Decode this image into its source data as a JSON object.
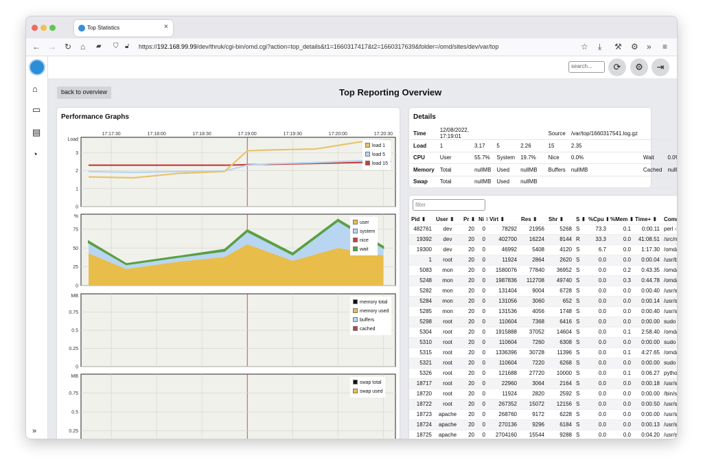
{
  "browser": {
    "tab_title": "Top Statistics",
    "url_prefix": "https://",
    "url_host": "192.168.99.99",
    "url_path": "/dev/thruk/cgi-bin/omd.cgi?action=top_details&t1=1660317417&t2=1660317639&folder=/omd/sites/dev/var/top",
    "colors": {
      "close": "#ed6a5e",
      "minimize": "#f5bf4f",
      "maximize": "#61c554"
    }
  },
  "app": {
    "search_placeholder": "search...",
    "back_label": "back to overview",
    "page_title": "Top Reporting Overview",
    "sidebar_icons": [
      "home-icon",
      "monitor-icon",
      "book-icon",
      "gauge-icon",
      "expand-icon"
    ]
  },
  "graphs": {
    "title": "Performance Graphs",
    "time_ticks": [
      "17:17:30",
      "17:18:00",
      "17:18:30",
      "17:19:00",
      "17:19:30",
      "17:20:00",
      "17:20:30"
    ],
    "load": {
      "ylabel": "Load",
      "yticks": [
        "0",
        "1",
        "2",
        "3"
      ],
      "legend": [
        {
          "name": "load 1",
          "color": "#e8c36a"
        },
        {
          "name": "load 5",
          "color": "#b8d6f2"
        },
        {
          "name": "load 15",
          "color": "#c2413e"
        }
      ]
    },
    "cpu": {
      "ylabel": "%",
      "yticks": [
        "0",
        "25",
        "50",
        "75"
      ],
      "legend": [
        {
          "name": "user",
          "color": "#e8bd4a"
        },
        {
          "name": "system",
          "color": "#b8d6f2"
        },
        {
          "name": "nice",
          "color": "#c2413e"
        },
        {
          "name": "wait",
          "color": "#5aa042"
        }
      ]
    },
    "memory": {
      "ylabel": "MB",
      "yticks": [
        "0",
        "0.25",
        "0.5",
        "0.75"
      ],
      "legend": [
        {
          "name": "memory total",
          "color": "#111111"
        },
        {
          "name": "memory used",
          "color": "#e8bd4a"
        },
        {
          "name": "buffers",
          "color": "#b8d6f2"
        },
        {
          "name": "cached",
          "color": "#c2413e"
        }
      ]
    },
    "swap": {
      "ylabel": "MB",
      "yticks": [
        "0.25",
        "0.5",
        "0.75"
      ],
      "legend": [
        {
          "name": "swap total",
          "color": "#111111"
        },
        {
          "name": "swap used",
          "color": "#e8bd4a"
        }
      ]
    }
  },
  "chart_data": [
    {
      "type": "line",
      "title": "",
      "ylabel": "Load",
      "x": [
        "17:17:15",
        "17:17:45",
        "17:18:15",
        "17:18:45",
        "17:19:00",
        "17:19:15",
        "17:19:45",
        "17:20:15",
        "17:20:35"
      ],
      "series": [
        {
          "name": "load 1",
          "values": [
            1.65,
            1.6,
            1.85,
            1.95,
            3.1,
            3.15,
            3.2,
            3.6,
            3.7
          ]
        },
        {
          "name": "load 5",
          "values": [
            1.95,
            1.9,
            1.95,
            1.98,
            2.3,
            2.38,
            2.45,
            2.55,
            2.6
          ]
        },
        {
          "name": "load 15",
          "values": [
            2.3,
            2.3,
            2.3,
            2.3,
            2.33,
            2.35,
            2.4,
            2.45,
            2.5
          ]
        }
      ],
      "ylim": [
        0,
        3.85
      ]
    },
    {
      "type": "area",
      "title": "",
      "ylabel": "%",
      "x": [
        "17:17:15",
        "17:17:40",
        "17:18:15",
        "17:18:45",
        "17:19:00",
        "17:19:30",
        "17:20:00",
        "17:20:30"
      ],
      "series": [
        {
          "name": "user",
          "values": [
            43,
            22,
            32,
            38,
            55,
            33,
            50,
            40
          ]
        },
        {
          "name": "system",
          "values": [
            14,
            6,
            6,
            8,
            17,
            8,
            36,
            10
          ]
        },
        {
          "name": "nice",
          "values": [
            0,
            0,
            0,
            0,
            0,
            0,
            0,
            0
          ]
        },
        {
          "name": "wait",
          "values": [
            2,
            1,
            1,
            2,
            2,
            2,
            2,
            2
          ]
        }
      ],
      "ylim": [
        0,
        95
      ]
    },
    {
      "type": "line",
      "title": "",
      "ylabel": "MB",
      "series": [
        {
          "name": "memory total",
          "values": []
        },
        {
          "name": "memory used",
          "values": []
        },
        {
          "name": "buffers",
          "values": []
        },
        {
          "name": "cached",
          "values": []
        }
      ],
      "ylim": [
        0,
        1
      ]
    },
    {
      "type": "line",
      "title": "",
      "ylabel": "MB",
      "series": [
        {
          "name": "swap total",
          "values": []
        },
        {
          "name": "swap used",
          "values": []
        }
      ],
      "ylim": [
        0,
        1
      ]
    }
  ],
  "details": {
    "title": "Details",
    "rows": [
      [
        "Time",
        "12/08/2022, 17:19:01",
        "",
        "",
        "",
        "",
        "Source",
        "/var/top/1660317541.log.gz",
        "",
        ""
      ],
      [
        "Load",
        "1",
        "3.17",
        "5",
        "2.26",
        "",
        "15",
        "2.35",
        "",
        ""
      ],
      [
        "CPU",
        "User",
        "55.7%",
        "System",
        "19.7%",
        "",
        "Nice",
        "0.0%",
        "Wait",
        "0.0%"
      ],
      [
        "Memory",
        "Total",
        "nullMB",
        "Used",
        "nullMB",
        "",
        "Buffers",
        "nullMB",
        "Cached",
        "nullMB"
      ],
      [
        "Swap",
        "Total",
        "nullMB",
        "Used",
        "nullMB",
        "",
        "",
        "",
        "",
        ""
      ]
    ]
  },
  "processes": {
    "filter_placeholder": "filter",
    "columns": [
      "Pid",
      "User",
      "Pr",
      "Ni",
      "Virt",
      "Res",
      "Shr",
      "S",
      "%Cpu",
      "%Mem",
      "Time+",
      "Comma"
    ],
    "rows": [
      [
        "482761",
        "dev",
        "20",
        "0",
        "78292",
        "21956",
        "5268",
        "S",
        "73.3",
        "0.1",
        "0:00.11",
        "perl -x"
      ],
      [
        "19392",
        "dev",
        "20",
        "0",
        "402700",
        "16224",
        "8144",
        "R",
        "33.3",
        "0.0",
        "41:08.51",
        "/src/na"
      ],
      [
        "19300",
        "dev",
        "20",
        "0",
        "46992",
        "5408",
        "4120",
        "S",
        "6.7",
        "0.0",
        "1:17.30",
        "/omd/s"
      ],
      [
        "1",
        "root",
        "20",
        "0",
        "11924",
        "2864",
        "2620",
        "S",
        "0.0",
        "0.0",
        "0:00.04",
        "/usr/bi"
      ],
      [
        "5083",
        "mon",
        "20",
        "0",
        "1580076",
        "77840",
        "36952",
        "S",
        "0.0",
        "0.2",
        "0:43.35",
        "/omd/s"
      ],
      [
        "5248",
        "mon",
        "20",
        "0",
        "1987836",
        "112708",
        "49740",
        "S",
        "0.0",
        "0.3",
        "0:44.78",
        "/omd/s"
      ],
      [
        "5282",
        "mon",
        "20",
        "0",
        "131404",
        "9004",
        "6728",
        "S",
        "0.0",
        "0.0",
        "0:00.40",
        "/usr/sb"
      ],
      [
        "5284",
        "mon",
        "20",
        "0",
        "131056",
        "3060",
        "652",
        "S",
        "0.0",
        "0.0",
        "0:00.14",
        "/usr/sb"
      ],
      [
        "5285",
        "mon",
        "20",
        "0",
        "131536",
        "4056",
        "1748",
        "S",
        "0.0",
        "0.0",
        "0:00.40",
        "/usr/sb"
      ],
      [
        "5298",
        "root",
        "20",
        "0",
        "110604",
        "7368",
        "6416",
        "S",
        "0.0",
        "0.0",
        "0:00.00",
        "sudo n"
      ],
      [
        "5304",
        "root",
        "20",
        "0",
        "1915888",
        "37052",
        "14604",
        "S",
        "0.0",
        "0.1",
        "2:58.40",
        "/omd/s"
      ],
      [
        "5310",
        "root",
        "20",
        "0",
        "110604",
        "7260",
        "6308",
        "S",
        "0.0",
        "0.0",
        "0:00.00",
        "sudo n"
      ],
      [
        "5315",
        "root",
        "20",
        "0",
        "1336396",
        "30728",
        "11396",
        "S",
        "0.0",
        "0.1",
        "4:27.65",
        "/omd/s"
      ],
      [
        "5321",
        "root",
        "20",
        "0",
        "110604",
        "7220",
        "6268",
        "S",
        "0.0",
        "0.0",
        "0:00.00",
        "sudo n"
      ],
      [
        "5326",
        "root",
        "20",
        "0",
        "121688",
        "27720",
        "10000",
        "S",
        "0.0",
        "0.1",
        "0:06.27",
        "python"
      ],
      [
        "18717",
        "root",
        "20",
        "0",
        "22960",
        "3064",
        "2164",
        "S",
        "0.0",
        "0.0",
        "0:00.18",
        "/usr/sb"
      ],
      [
        "18720",
        "root",
        "20",
        "0",
        "11924",
        "2820",
        "2592",
        "S",
        "0.0",
        "0.0",
        "0:00.00",
        "/bin/sh"
      ],
      [
        "18722",
        "root",
        "20",
        "0",
        "267352",
        "15072",
        "12156",
        "S",
        "0.0",
        "0.0",
        "0:00.50",
        "/usr/sb"
      ],
      [
        "18723",
        "apache",
        "20",
        "0",
        "268760",
        "9172",
        "6228",
        "S",
        "0.0",
        "0.0",
        "0:00.00",
        "/usr/sb"
      ],
      [
        "18724",
        "apache",
        "20",
        "0",
        "270136",
        "9296",
        "6184",
        "S",
        "0.0",
        "0.0",
        "0:00.13",
        "/usr/sb"
      ],
      [
        "18725",
        "apache",
        "20",
        "0",
        "2704160",
        "15544",
        "9288",
        "S",
        "0.0",
        "0.0",
        "0:04.20",
        "/usr/sb"
      ]
    ]
  }
}
